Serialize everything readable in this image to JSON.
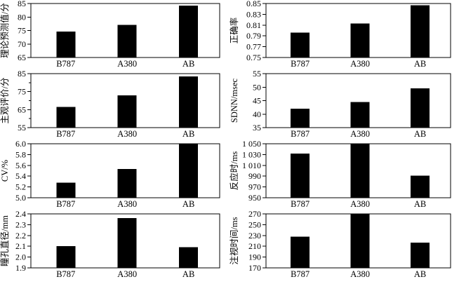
{
  "page": {
    "background": "#ffffff",
    "bar_color": "#000000",
    "axis_color": "#000000",
    "grid": "off",
    "legend": "none"
  },
  "categories": [
    "B787",
    "A380",
    "AB"
  ],
  "chart_data": [
    {
      "type": "bar",
      "title": "",
      "xlabel": "",
      "ylabel": "理论预测值/分",
      "categories": [
        "B787",
        "A380",
        "AB"
      ],
      "values": [
        74.6,
        77.1,
        84.2
      ],
      "ylim": [
        65,
        85
      ],
      "yticks": [
        {
          "value": 65,
          "label": "65"
        },
        {
          "value": 70,
          "label": "70"
        },
        {
          "value": 75,
          "label": "75"
        },
        {
          "value": 80,
          "label": "80"
        },
        {
          "value": 85,
          "label": "85"
        }
      ],
      "minor_ticks": []
    },
    {
      "type": "bar",
      "title": "",
      "xlabel": "",
      "ylabel": "正确率",
      "categories": [
        "B787",
        "A380",
        "AB"
      ],
      "values": [
        0.796,
        0.813,
        0.847
      ],
      "ylim": [
        0.75,
        0.85
      ],
      "yticks": [
        {
          "value": 0.75,
          "label": "0.75"
        },
        {
          "value": 0.77,
          "label": "0.77"
        },
        {
          "value": 0.79,
          "label": "0.79"
        },
        {
          "value": 0.81,
          "label": "0.81"
        },
        {
          "value": 0.83,
          "label": "0.83"
        },
        {
          "value": 0.85,
          "label": "0.85"
        }
      ],
      "minor_ticks": []
    },
    {
      "type": "bar",
      "title": "",
      "xlabel": "",
      "ylabel": "主观评价/分",
      "categories": [
        "B787",
        "A380",
        "AB"
      ],
      "values": [
        66.5,
        73,
        83.5
      ],
      "ylim": [
        55,
        85
      ],
      "yticks": [
        {
          "value": 55,
          "label": "55"
        },
        {
          "value": 65,
          "label": "65"
        },
        {
          "value": 75,
          "label": "75"
        },
        {
          "value": 85,
          "label": "85"
        }
      ],
      "minor_ticks": [
        60,
        70,
        80
      ]
    },
    {
      "type": "bar",
      "title": "",
      "xlabel": "",
      "ylabel": "SDNN/msec",
      "categories": [
        "B787",
        "A380",
        "AB"
      ],
      "values": [
        42,
        44.5,
        49.5
      ],
      "ylim": [
        35,
        55
      ],
      "yticks": [
        {
          "value": 35,
          "label": "35"
        },
        {
          "value": 40,
          "label": "40"
        },
        {
          "value": 45,
          "label": "45"
        },
        {
          "value": 50,
          "label": "50"
        },
        {
          "value": 55,
          "label": "55"
        }
      ],
      "minor_ticks": []
    },
    {
      "type": "bar",
      "title": "",
      "xlabel": "",
      "ylabel": "CV/%",
      "categories": [
        "B787",
        "A380",
        "AB"
      ],
      "values": [
        5.28,
        5.53,
        6.0
      ],
      "ylim": [
        5.0,
        6.0
      ],
      "yticks": [
        {
          "value": 5.0,
          "label": "5.0"
        },
        {
          "value": 5.2,
          "label": "5.2"
        },
        {
          "value": 5.4,
          "label": "5.4"
        },
        {
          "value": 5.6,
          "label": "5.6"
        },
        {
          "value": 5.8,
          "label": "5.8"
        },
        {
          "value": 6.0,
          "label": "6.0"
        }
      ],
      "minor_ticks": []
    },
    {
      "type": "bar",
      "title": "",
      "xlabel": "",
      "ylabel": "反应时/ms",
      "categories": [
        "B787",
        "A380",
        "AB"
      ],
      "values": [
        1032,
        1050,
        991
      ],
      "ylim": [
        950,
        1050
      ],
      "yticks": [
        {
          "value": 950,
          "label": "950"
        },
        {
          "value": 970,
          "label": "970"
        },
        {
          "value": 990,
          "label": "990"
        },
        {
          "value": 1010,
          "label": "1 010"
        },
        {
          "value": 1030,
          "label": "1 030"
        },
        {
          "value": 1050,
          "label": "1 050"
        }
      ],
      "minor_ticks": []
    },
    {
      "type": "bar",
      "title": "",
      "xlabel": "",
      "ylabel": "瞳孔直径/mm",
      "categories": [
        "B787",
        "A380",
        "AB"
      ],
      "values": [
        2.1,
        2.36,
        2.09
      ],
      "ylim": [
        1.9,
        2.4
      ],
      "yticks": [
        {
          "value": 1.9,
          "label": "1.9"
        },
        {
          "value": 2.0,
          "label": "2.0"
        },
        {
          "value": 2.1,
          "label": "2.1"
        },
        {
          "value": 2.2,
          "label": "2.2"
        },
        {
          "value": 2.3,
          "label": "2.3"
        },
        {
          "value": 2.4,
          "label": "2.4"
        }
      ],
      "minor_ticks": []
    },
    {
      "type": "bar",
      "title": "",
      "xlabel": "",
      "ylabel": "注视时间/ms",
      "categories": [
        "B787",
        "A380",
        "AB"
      ],
      "values": [
        228,
        270,
        217
      ],
      "ylim": [
        170,
        270
      ],
      "yticks": [
        {
          "value": 170,
          "label": "170"
        },
        {
          "value": 190,
          "label": "190"
        },
        {
          "value": 210,
          "label": "210"
        },
        {
          "value": 230,
          "label": "230"
        },
        {
          "value": 250,
          "label": "250"
        },
        {
          "value": 270,
          "label": "270"
        }
      ],
      "minor_ticks": []
    }
  ]
}
